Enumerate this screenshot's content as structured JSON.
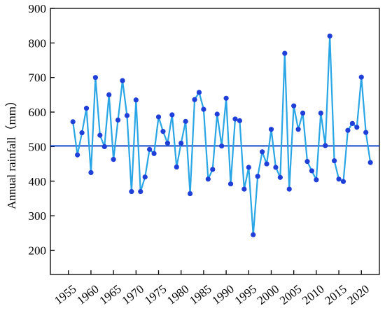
{
  "chart_data": {
    "type": "line",
    "xlabel": "",
    "ylabel": "Annual rainfall（mm）",
    "xlim": [
      1951,
      2024
    ],
    "ylim": [
      130,
      900
    ],
    "x_ticks": [
      1955,
      1960,
      1965,
      1970,
      1975,
      1980,
      1985,
      1990,
      1995,
      2000,
      2005,
      2010,
      2015,
      2020
    ],
    "y_ticks": [
      200,
      300,
      400,
      500,
      600,
      700,
      800,
      900
    ],
    "y_tick_labels": [
      "200",
      "300",
      "400",
      "500",
      "600",
      "700",
      "800",
      "900"
    ],
    "x_tick_labels": [
      "1955",
      "1960",
      "1965",
      "1970",
      "1975",
      "1980",
      "1985",
      "1990",
      "1995",
      "2000",
      "2005",
      "2010",
      "2015",
      "2020"
    ],
    "grid": false,
    "reference_line": {
      "y": 502,
      "color": "#1347c9"
    },
    "series": [
      {
        "line_color": "#2aa6e6",
        "marker_color": "#1f3fd8",
        "x": [
          1956,
          1957,
          1958,
          1959,
          1960,
          1961,
          1962,
          1963,
          1964,
          1965,
          1966,
          1967,
          1968,
          1969,
          1970,
          1971,
          1972,
          1973,
          1974,
          1975,
          1976,
          1977,
          1978,
          1979,
          1980,
          1981,
          1982,
          1983,
          1984,
          1985,
          1986,
          1987,
          1988,
          1989,
          1990,
          1991,
          1992,
          1993,
          1994,
          1995,
          1996,
          1997,
          1998,
          1999,
          2000,
          2001,
          2002,
          2003,
          2004,
          2005,
          2006,
          2007,
          2008,
          2009,
          2010,
          2011,
          2012,
          2013,
          2014,
          2015,
          2016,
          2017,
          2018,
          2019,
          2020,
          2021,
          2022
        ],
        "y": [
          572,
          476,
          540,
          611,
          425,
          700,
          533,
          500,
          650,
          463,
          577,
          691,
          590,
          370,
          635,
          370,
          412,
          492,
          480,
          586,
          544,
          510,
          592,
          441,
          510,
          573,
          364,
          636,
          657,
          608,
          406,
          434,
          594,
          502,
          640,
          392,
          580,
          575,
          377,
          440,
          245,
          414,
          485,
          450,
          550,
          440,
          411,
          770,
          377,
          618,
          550,
          597,
          457,
          430,
          404,
          597,
          503,
          820,
          459,
          406,
          399,
          547,
          567,
          556,
          701,
          541,
          454
        ]
      }
    ]
  }
}
